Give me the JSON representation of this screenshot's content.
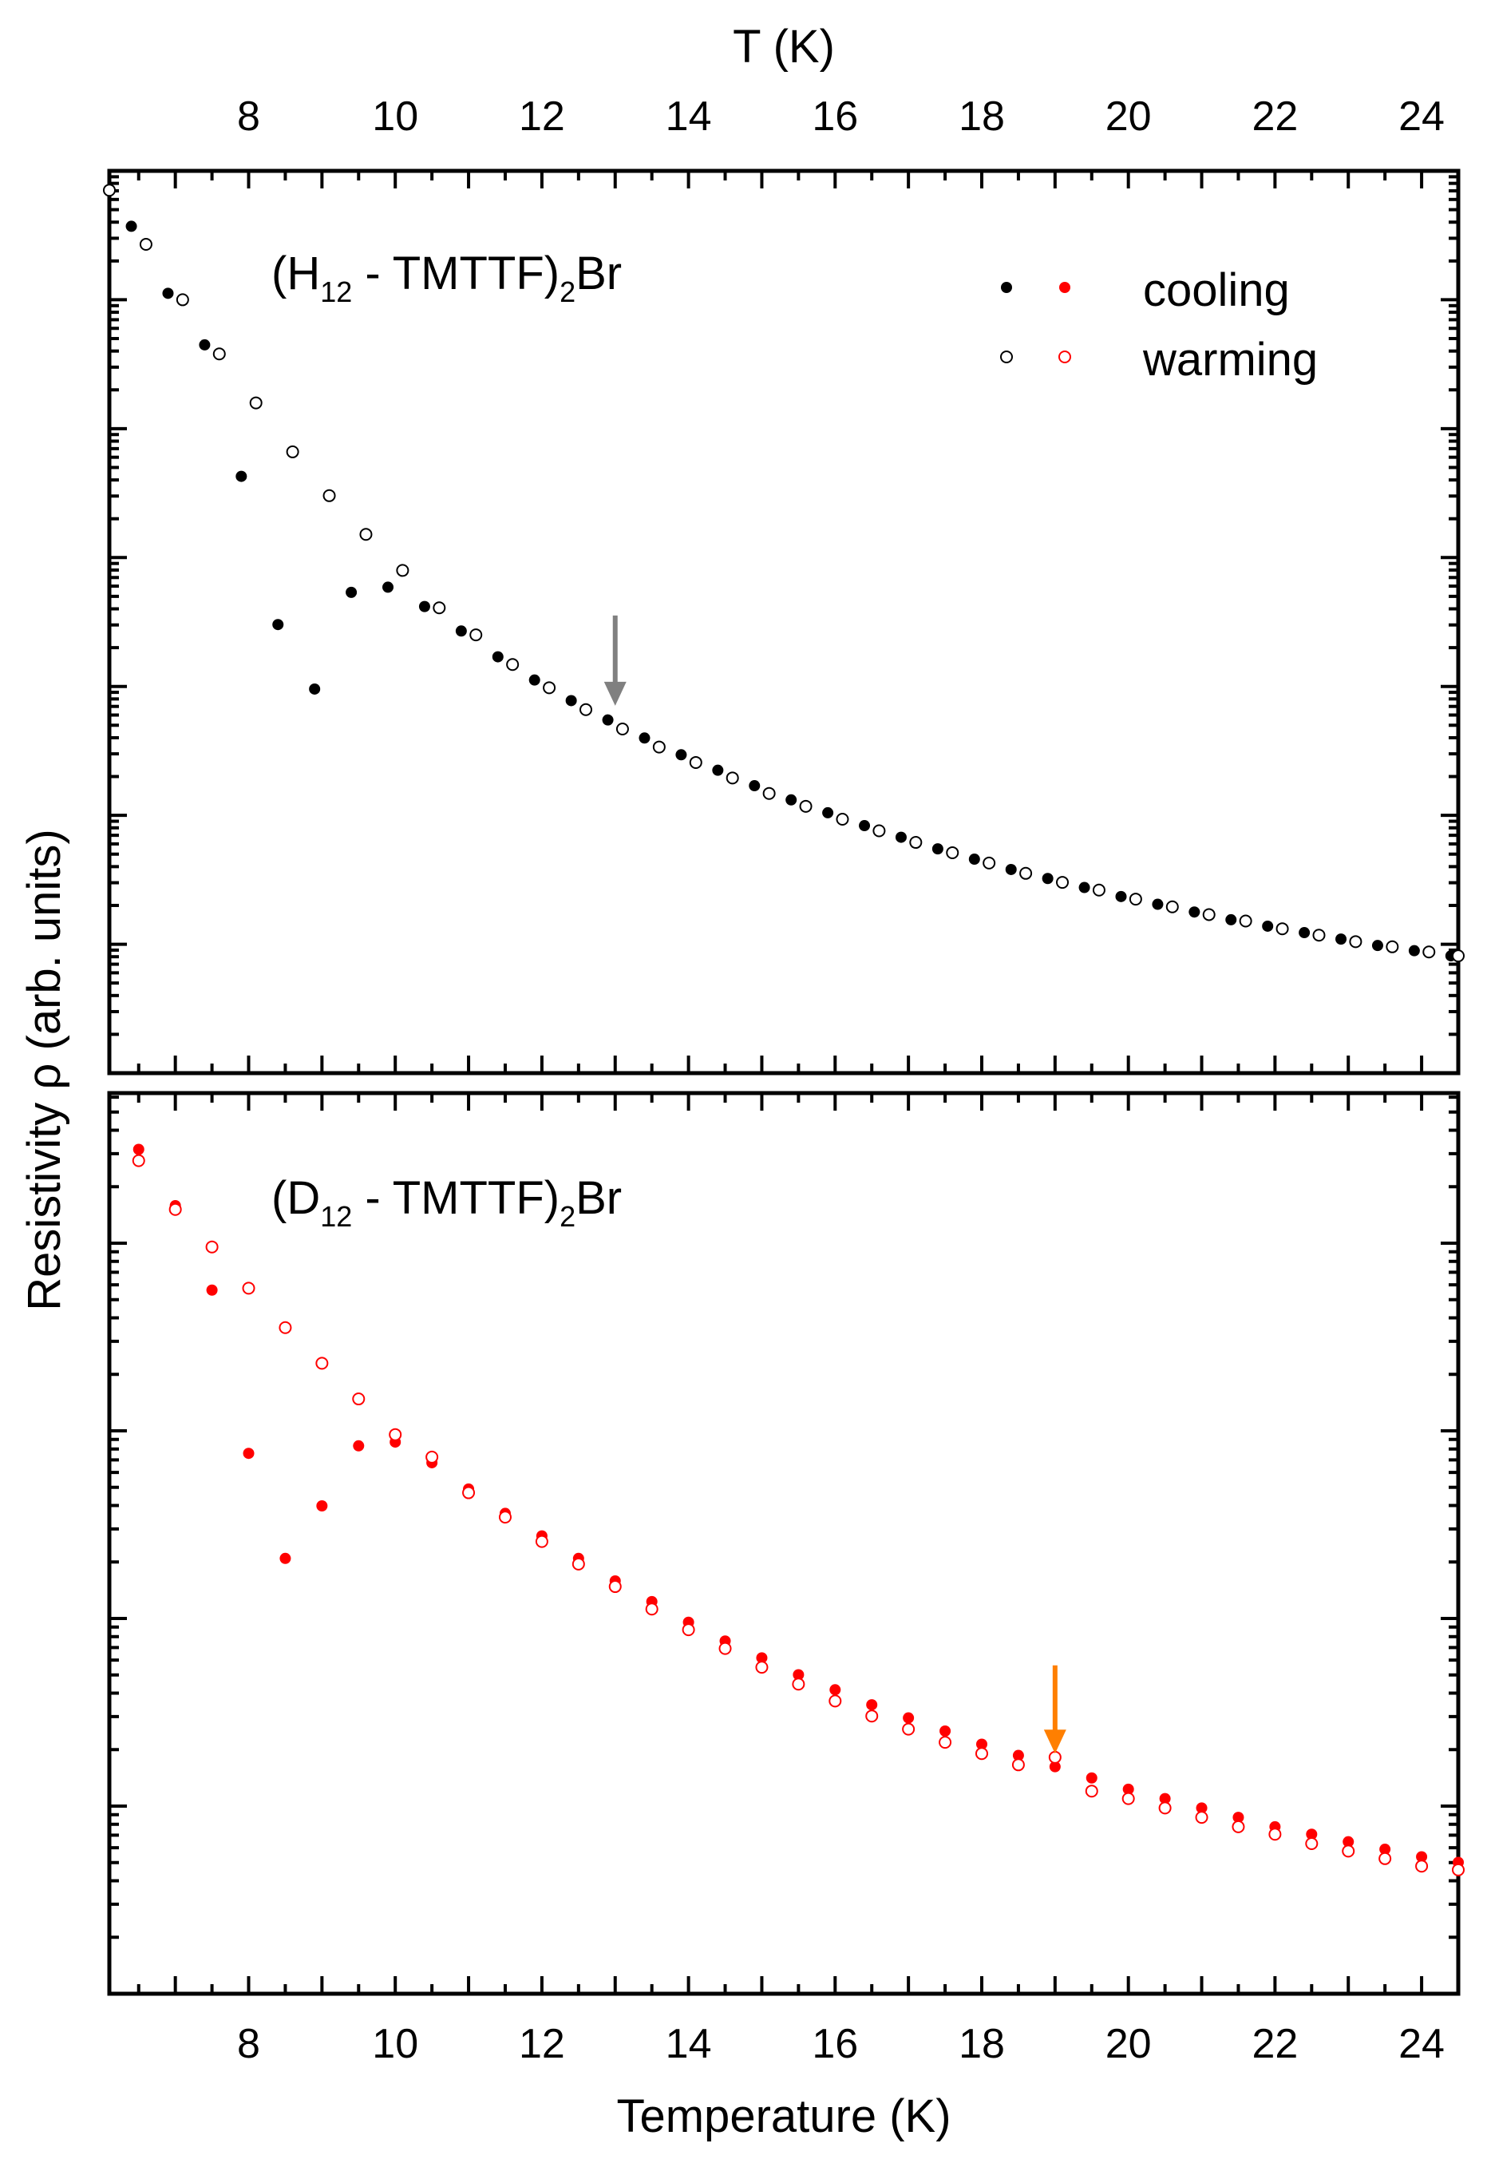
{
  "chart_data": [
    {
      "type": "scatter",
      "panel": "top",
      "label": {
        "pre": "(H",
        "sub1": "12",
        "mid": " - TMTTF)",
        "sub2": "2",
        "post": "Br"
      },
      "x_axis_top": {
        "label": "T (K)",
        "ticks": [
          8,
          10,
          12,
          14,
          16,
          18,
          20,
          22,
          24
        ]
      },
      "xlim": [
        6.1,
        24.5
      ],
      "y_scale": "log",
      "y_units": "arbitrary (decades, unlabeled)",
      "ylim": [
        0.0,
        7.0
      ],
      "series": [
        {
          "name": "cooling",
          "color": "#000000",
          "marker": "filled-circle",
          "x": [
            6.4,
            6.9,
            7.4,
            7.9,
            8.4,
            8.9,
            9.4,
            9.9,
            10.4,
            10.9,
            11.4,
            11.9,
            12.4,
            12.9,
            13.4,
            13.9,
            14.4,
            14.9,
            15.4,
            15.9,
            16.4,
            16.9,
            17.4,
            17.9,
            18.4,
            18.9,
            19.4,
            19.9,
            20.4,
            20.9,
            21.4,
            21.9,
            22.4,
            22.9,
            23.4,
            23.9,
            24.4
          ],
          "y": [
            6.57,
            6.05,
            5.65,
            4.63,
            3.48,
            2.98,
            3.73,
            3.77,
            3.62,
            3.43,
            3.23,
            3.05,
            2.89,
            2.74,
            2.6,
            2.47,
            2.35,
            2.23,
            2.12,
            2.02,
            1.92,
            1.83,
            1.74,
            1.66,
            1.58,
            1.51,
            1.44,
            1.37,
            1.31,
            1.25,
            1.19,
            1.14,
            1.09,
            1.04,
            0.99,
            0.95,
            0.91
          ]
        },
        {
          "name": "warming",
          "color": "#000000",
          "marker": "open-circle",
          "x": [
            6.1,
            6.6,
            7.1,
            7.6,
            8.1,
            8.6,
            9.1,
            9.6,
            10.1,
            10.6,
            11.1,
            11.6,
            12.1,
            12.6,
            13.1,
            13.6,
            14.1,
            14.6,
            15.1,
            15.6,
            16.1,
            16.6,
            17.1,
            17.6,
            18.1,
            18.6,
            19.1,
            19.6,
            20.1,
            20.6,
            21.1,
            21.6,
            22.1,
            22.6,
            23.1,
            23.6,
            24.1,
            24.5
          ],
          "y": [
            6.85,
            6.43,
            6.0,
            5.58,
            5.2,
            4.82,
            4.48,
            4.18,
            3.9,
            3.61,
            3.4,
            3.17,
            2.99,
            2.82,
            2.67,
            2.53,
            2.41,
            2.29,
            2.17,
            2.07,
            1.97,
            1.88,
            1.79,
            1.71,
            1.63,
            1.55,
            1.48,
            1.42,
            1.35,
            1.29,
            1.23,
            1.18,
            1.12,
            1.07,
            1.02,
            0.98,
            0.94,
            0.91
          ]
        }
      ],
      "arrow": {
        "x": 13.0,
        "y_from": 3.55,
        "y_to": 2.85,
        "color": "#808080"
      }
    },
    {
      "type": "scatter",
      "panel": "bottom",
      "label": {
        "pre": "(D",
        "sub1": "12",
        "mid": " - TMTTF)",
        "sub2": "2",
        "post": "Br"
      },
      "x_axis_bottom": {
        "label": "Temperature (K)",
        "ticks": [
          8,
          10,
          12,
          14,
          16,
          18,
          20,
          22,
          24
        ]
      },
      "xlim": [
        6.1,
        24.5
      ],
      "y_scale": "log",
      "y_units": "arbitrary (decades, unlabeled)",
      "ylim": [
        0.0,
        4.8
      ],
      "series": [
        {
          "name": "cooling",
          "color": "#ff0000",
          "marker": "filled-circle",
          "x": [
            6.5,
            7.0,
            7.5,
            8.0,
            8.5,
            9.0,
            9.5,
            10.0,
            10.5,
            11.0,
            11.5,
            12.0,
            12.5,
            13.0,
            13.5,
            14.0,
            14.5,
            15.0,
            15.5,
            16.0,
            16.5,
            17.0,
            17.5,
            18.0,
            18.5,
            19.0,
            19.5,
            20.0,
            20.5,
            21.0,
            21.5,
            22.0,
            22.5,
            23.0,
            23.5,
            24.0,
            24.5
          ],
          "y": [
            4.5,
            4.2,
            3.75,
            2.88,
            2.32,
            2.6,
            2.92,
            2.94,
            2.83,
            2.69,
            2.56,
            2.44,
            2.32,
            2.2,
            2.09,
            1.98,
            1.88,
            1.79,
            1.7,
            1.62,
            1.54,
            1.47,
            1.4,
            1.33,
            1.27,
            1.21,
            1.15,
            1.09,
            1.04,
            0.99,
            0.94,
            0.89,
            0.85,
            0.81,
            0.77,
            0.73,
            0.7
          ]
        },
        {
          "name": "warming",
          "color": "#ff0000",
          "marker": "open-circle",
          "x": [
            6.5,
            7.0,
            7.5,
            8.0,
            8.5,
            9.0,
            9.5,
            10.0,
            10.5,
            11.0,
            11.5,
            12.0,
            12.5,
            13.0,
            13.5,
            14.0,
            14.5,
            15.0,
            15.5,
            16.0,
            16.5,
            17.0,
            17.5,
            18.0,
            18.5,
            19.0,
            19.5,
            20.0,
            20.5,
            21.0,
            21.5,
            22.0,
            22.5,
            23.0,
            23.5,
            24.0,
            24.5
          ],
          "y": [
            4.44,
            4.18,
            3.98,
            3.76,
            3.55,
            3.36,
            3.17,
            2.98,
            2.86,
            2.67,
            2.54,
            2.41,
            2.29,
            2.17,
            2.05,
            1.94,
            1.84,
            1.74,
            1.65,
            1.56,
            1.48,
            1.41,
            1.34,
            1.28,
            1.22,
            1.26,
            1.08,
            1.04,
            0.99,
            0.94,
            0.89,
            0.85,
            0.8,
            0.76,
            0.72,
            0.68,
            0.66
          ]
        }
      ],
      "arrow": {
        "x": 19.0,
        "y_from": 1.75,
        "y_to": 1.28,
        "color": "#ff7f00"
      }
    }
  ],
  "legend": {
    "placement": "top-right of top panel",
    "items": [
      {
        "label": "cooling",
        "marker": "filled-circle",
        "colors": [
          "#000000",
          "#ff0000"
        ]
      },
      {
        "label": "warming",
        "marker": "open-circle",
        "colors": [
          "#000000",
          "#ff0000"
        ]
      }
    ]
  },
  "y_label": "Resistivity ρ (arb. units)"
}
